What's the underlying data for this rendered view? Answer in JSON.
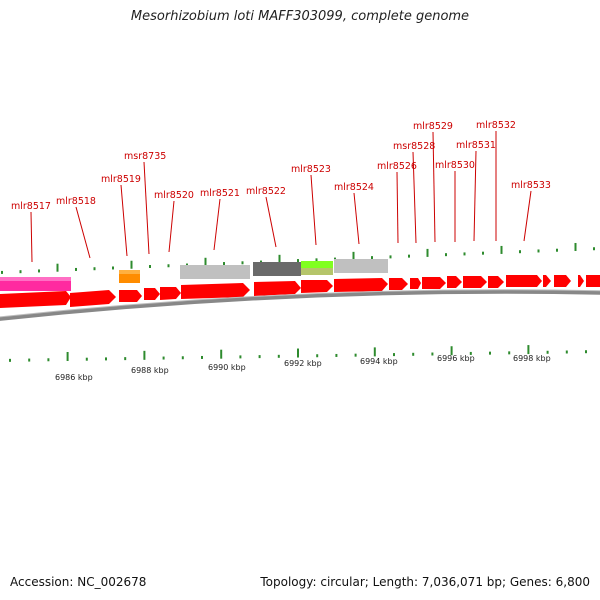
{
  "title": "Mesorhizobium loti MAFF303099, complete genome",
  "footer": {
    "accession": "Accession: NC_002678",
    "summary": "Topology: circular; Length: 7,036,071 bp; Genes: 6,800"
  },
  "colors": {
    "gene_label": "#cc0000",
    "cds_forward": "#ff0000",
    "tick": "#2e8b2e",
    "backbone": "#888888"
  },
  "gene_labels": [
    "mlr8517",
    "mlr8518",
    "mlr8519",
    "msr8735",
    "mlr8520",
    "mlr8521",
    "mlr8522",
    "mlr8523",
    "mlr8524",
    "mlr8526",
    "msr8528",
    "mlr8529",
    "mlr8530",
    "mlr8531",
    "mlr8532",
    "mlr8533"
  ],
  "kbp_labels": [
    "6986 kbp",
    "6988 kbp",
    "6990 kbp",
    "6992 kbp",
    "6994 kbp",
    "6996 kbp",
    "6998 kbp"
  ]
}
